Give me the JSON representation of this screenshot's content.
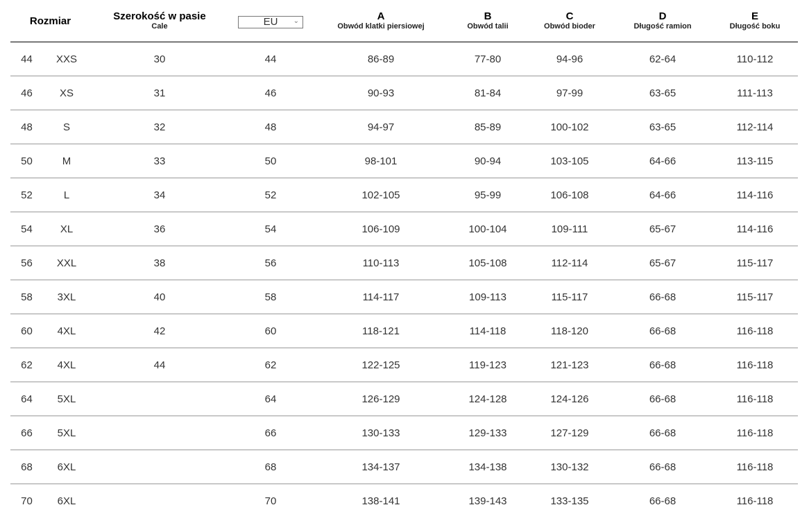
{
  "header": {
    "size": "Rozmiar",
    "waist": {
      "title": "Szerokość w pasie",
      "sub": "Cale"
    },
    "region_select": {
      "value": "EU"
    },
    "a": {
      "letter": "A",
      "label": "Obwód klatki piersiowej"
    },
    "b": {
      "letter": "B",
      "label": "Obwód talii"
    },
    "c": {
      "letter": "C",
      "label": "Obwód bioder"
    },
    "d": {
      "letter": "D",
      "label": "Długość ramion"
    },
    "e": {
      "letter": "E",
      "label": "Długość boku"
    }
  },
  "rows": [
    [
      "44",
      "XXS",
      "30",
      "44",
      "86-89",
      "77-80",
      "94-96",
      "62-64",
      "110-112"
    ],
    [
      "46",
      "XS",
      "31",
      "46",
      "90-93",
      "81-84",
      "97-99",
      "63-65",
      "111-113"
    ],
    [
      "48",
      "S",
      "32",
      "48",
      "94-97",
      "85-89",
      "100-102",
      "63-65",
      "112-114"
    ],
    [
      "50",
      "M",
      "33",
      "50",
      "98-101",
      "90-94",
      "103-105",
      "64-66",
      "113-115"
    ],
    [
      "52",
      "L",
      "34",
      "52",
      "102-105",
      "95-99",
      "106-108",
      "64-66",
      "114-116"
    ],
    [
      "54",
      "XL",
      "36",
      "54",
      "106-109",
      "100-104",
      "109-111",
      "65-67",
      "114-116"
    ],
    [
      "56",
      "XXL",
      "38",
      "56",
      "110-113",
      "105-108",
      "112-114",
      "65-67",
      "115-117"
    ],
    [
      "58",
      "3XL",
      "40",
      "58",
      "114-117",
      "109-113",
      "115-117",
      "66-68",
      "115-117"
    ],
    [
      "60",
      "4XL",
      "42",
      "60",
      "118-121",
      "114-118",
      "118-120",
      "66-68",
      "116-118"
    ],
    [
      "62",
      "4XL",
      "44",
      "62",
      "122-125",
      "119-123",
      "121-123",
      "66-68",
      "116-118"
    ],
    [
      "64",
      "5XL",
      "",
      "64",
      "126-129",
      "124-128",
      "124-126",
      "66-68",
      "116-118"
    ],
    [
      "66",
      "5XL",
      "",
      "66",
      "130-133",
      "129-133",
      "127-129",
      "66-68",
      "116-118"
    ],
    [
      "68",
      "6XL",
      "",
      "68",
      "134-137",
      "134-138",
      "130-132",
      "66-68",
      "116-118"
    ],
    [
      "70",
      "6XL",
      "",
      "70",
      "138-141",
      "139-143",
      "133-135",
      "66-68",
      "116-118"
    ]
  ]
}
